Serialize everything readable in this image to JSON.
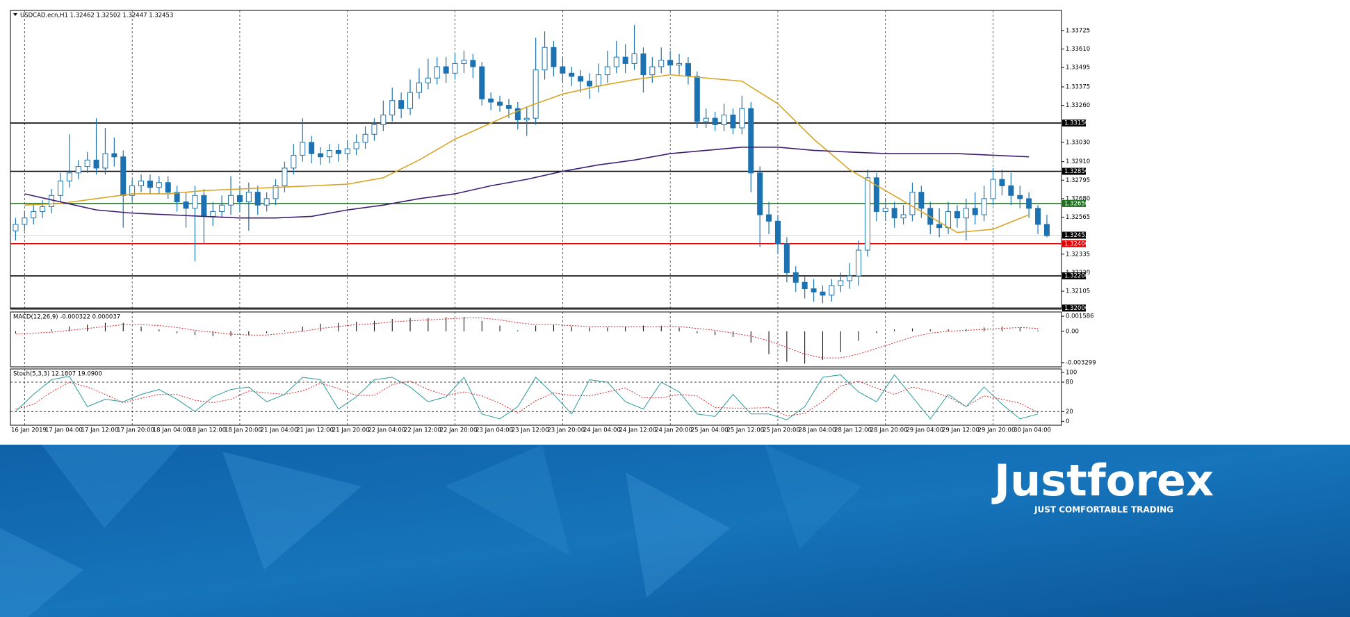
{
  "chart_data": [
    {
      "type": "candlestick",
      "title": "USDCAD.ecn,H1  1.32462 1.32502 1.32447 1.32453",
      "categories": [
        "16 Jan 2019",
        "17 Jan 04:00",
        "17 Jan 12:00",
        "17 Jan 20:00",
        "18 Jan 04:00",
        "18 Jan 12:00",
        "18 Jan 20:00",
        "21 Jan 04:00",
        "21 Jan 12:00",
        "21 Jan 20:00",
        "22 Jan 04:00",
        "22 Jan 12:00",
        "22 Jan 20:00",
        "23 Jan 04:00",
        "23 Jan 12:00",
        "23 Jan 20:00",
        "24 Jan 04:00",
        "24 Jan 12:00",
        "24 Jan 20:00",
        "25 Jan 04:00",
        "25 Jan 12:00",
        "25 Jan 20:00",
        "28 Jan 04:00",
        "28 Jan 12:00",
        "28 Jan 20:00",
        "29 Jan 04:00",
        "29 Jan 12:00",
        "29 Jan 20:00",
        "30 Jan 04:00"
      ],
      "open": [
        1.3248,
        1.3252,
        1.3256,
        1.326,
        1.3263,
        1.327,
        1.3279,
        1.3284,
        1.3288,
        1.3292,
        1.3287,
        1.3296,
        1.3294,
        1.327,
        1.3276,
        1.3279,
        1.3275,
        1.3278,
        1.3272,
        1.3266,
        1.3262,
        1.327,
        1.3257,
        1.326,
        1.3264,
        1.327,
        1.3266,
        1.3272,
        1.3264,
        1.3268,
        1.3276,
        1.3287,
        1.3295,
        1.3303,
        1.3296,
        1.3294,
        1.3298,
        1.3296,
        1.3299,
        1.3303,
        1.3308,
        1.3314,
        1.332,
        1.3329,
        1.3324,
        1.3334,
        1.334,
        1.3343,
        1.335,
        1.3346,
        1.3352,
        1.3354,
        1.335,
        1.333,
        1.3328,
        1.3326,
        1.3324,
        1.3317,
        1.3318,
        1.3348,
        1.3362,
        1.335,
        1.3346,
        1.3344,
        1.3341,
        1.3338,
        1.3345,
        1.335,
        1.3356,
        1.3352,
        1.3358,
        1.3345,
        1.335,
        1.3354,
        1.3351,
        1.3352,
        1.3344,
        1.3316,
        1.3318,
        1.3314,
        1.332,
        1.3312,
        1.3324,
        1.3284,
        1.3258,
        1.3254,
        1.324,
        1.3222,
        1.3216,
        1.3212,
        1.321,
        1.3208,
        1.3214,
        1.3217,
        1.322,
        1.3236,
        1.3281,
        1.326,
        1.3262,
        1.3256,
        1.3258,
        1.3272,
        1.3262,
        1.3252,
        1.325,
        1.326,
        1.3256,
        1.3262,
        1.3258,
        1.3268,
        1.328,
        1.3276,
        1.327,
        1.3268,
        1.3262,
        1.3252
      ],
      "high": [
        1.3256,
        1.326,
        1.3264,
        1.3267,
        1.3274,
        1.3284,
        1.3308,
        1.3292,
        1.3297,
        1.3318,
        1.3312,
        1.3306,
        1.3298,
        1.328,
        1.3283,
        1.3283,
        1.3282,
        1.3282,
        1.3276,
        1.3272,
        1.3276,
        1.3274,
        1.3266,
        1.327,
        1.3282,
        1.3276,
        1.3278,
        1.3276,
        1.3272,
        1.328,
        1.3291,
        1.3302,
        1.3318,
        1.3307,
        1.33,
        1.3302,
        1.3302,
        1.3304,
        1.3308,
        1.3313,
        1.3318,
        1.3329,
        1.3337,
        1.3334,
        1.3342,
        1.3349,
        1.3355,
        1.3356,
        1.3356,
        1.3358,
        1.336,
        1.3358,
        1.3353,
        1.3334,
        1.3332,
        1.333,
        1.3328,
        1.3325,
        1.3368,
        1.3372,
        1.3366,
        1.3356,
        1.335,
        1.3348,
        1.3346,
        1.3352,
        1.336,
        1.3366,
        1.3364,
        1.3376,
        1.3362,
        1.3356,
        1.3362,
        1.336,
        1.3358,
        1.3356,
        1.3347,
        1.3324,
        1.3322,
        1.3327,
        1.3324,
        1.3332,
        1.3328,
        1.3288,
        1.3266,
        1.3258,
        1.3244,
        1.3226,
        1.322,
        1.3218,
        1.3214,
        1.3218,
        1.3222,
        1.3228,
        1.3242,
        1.3286,
        1.3284,
        1.3268,
        1.3266,
        1.3264,
        1.3278,
        1.3276,
        1.3266,
        1.3262,
        1.3266,
        1.3264,
        1.3268,
        1.3272,
        1.3276,
        1.3287,
        1.3286,
        1.3284,
        1.3276,
        1.3272,
        1.3264,
        1.3258
      ],
      "low": [
        1.3242,
        1.3248,
        1.3252,
        1.3256,
        1.3259,
        1.3266,
        1.3275,
        1.328,
        1.3284,
        1.3283,
        1.3283,
        1.3288,
        1.325,
        1.3266,
        1.3272,
        1.3271,
        1.3271,
        1.3268,
        1.326,
        1.325,
        1.3229,
        1.324,
        1.3251,
        1.3256,
        1.3258,
        1.326,
        1.3248,
        1.3258,
        1.326,
        1.3264,
        1.3272,
        1.3283,
        1.3291,
        1.329,
        1.3289,
        1.329,
        1.3291,
        1.3292,
        1.3295,
        1.3299,
        1.3304,
        1.331,
        1.3316,
        1.3318,
        1.332,
        1.333,
        1.3336,
        1.3339,
        1.334,
        1.3342,
        1.3346,
        1.3343,
        1.3326,
        1.3323,
        1.3322,
        1.3318,
        1.3311,
        1.3307,
        1.3314,
        1.3342,
        1.3344,
        1.334,
        1.3338,
        1.3334,
        1.333,
        1.3334,
        1.334,
        1.3346,
        1.3346,
        1.3348,
        1.3334,
        1.334,
        1.3346,
        1.3346,
        1.3345,
        1.3339,
        1.3312,
        1.3312,
        1.331,
        1.331,
        1.3308,
        1.3308,
        1.3272,
        1.3238,
        1.3246,
        1.3234,
        1.3216,
        1.321,
        1.3206,
        1.3204,
        1.3203,
        1.3204,
        1.321,
        1.3212,
        1.3214,
        1.3232,
        1.3254,
        1.3254,
        1.325,
        1.3252,
        1.3254,
        1.3256,
        1.3246,
        1.3244,
        1.3246,
        1.325,
        1.3242,
        1.3252,
        1.3254,
        1.3264,
        1.327,
        1.3264,
        1.3262,
        1.3256,
        1.3246,
        1.3244
      ],
      "close": [
        1.3252,
        1.3256,
        1.326,
        1.3263,
        1.327,
        1.3279,
        1.3284,
        1.3288,
        1.3292,
        1.3287,
        1.3296,
        1.3294,
        1.327,
        1.3276,
        1.3279,
        1.3275,
        1.3278,
        1.3272,
        1.3266,
        1.3262,
        1.327,
        1.3257,
        1.326,
        1.3264,
        1.327,
        1.3266,
        1.3272,
        1.3264,
        1.3268,
        1.3276,
        1.3287,
        1.3295,
        1.3303,
        1.3296,
        1.3294,
        1.3298,
        1.3296,
        1.3299,
        1.3303,
        1.3308,
        1.3314,
        1.332,
        1.3329,
        1.3324,
        1.3334,
        1.334,
        1.3343,
        1.335,
        1.3346,
        1.3352,
        1.3354,
        1.335,
        1.333,
        1.3328,
        1.3326,
        1.3324,
        1.3317,
        1.3318,
        1.3348,
        1.3362,
        1.335,
        1.3346,
        1.3344,
        1.3341,
        1.3338,
        1.3345,
        1.335,
        1.3356,
        1.3352,
        1.3358,
        1.3345,
        1.335,
        1.3354,
        1.3351,
        1.3352,
        1.3344,
        1.3316,
        1.3318,
        1.3314,
        1.332,
        1.3312,
        1.3324,
        1.3284,
        1.3258,
        1.3254,
        1.324,
        1.3222,
        1.3216,
        1.3212,
        1.321,
        1.3208,
        1.3214,
        1.3217,
        1.322,
        1.3236,
        1.3281,
        1.326,
        1.3262,
        1.3256,
        1.3258,
        1.3272,
        1.3262,
        1.3252,
        1.325,
        1.326,
        1.3256,
        1.3262,
        1.3258,
        1.3268,
        1.328,
        1.3276,
        1.327,
        1.3268,
        1.3262,
        1.3252,
        1.3245
      ],
      "up_color": "#ffffff",
      "down_color": "#1c72b0",
      "moving_averages": [
        {
          "color": "#d9a528",
          "values": [
            1.3264,
            1.3265,
            1.3268,
            1.3271,
            1.3271,
            1.3273,
            1.3274,
            1.3275,
            1.3276,
            1.3277,
            1.3281,
            1.3292,
            1.3305,
            1.3315,
            1.3325,
            1.3333,
            1.3338,
            1.3342,
            1.3345,
            1.3343,
            1.3341,
            1.3327,
            1.3305,
            1.3286,
            1.3273,
            1.326,
            1.3247,
            1.3249,
            1.3258
          ]
        },
        {
          "color": "#3d1d72",
          "values": [
            1.3271,
            1.3266,
            1.3261,
            1.3259,
            1.3258,
            1.3257,
            1.3256,
            1.3256,
            1.3257,
            1.3261,
            1.3264,
            1.3268,
            1.3271,
            1.3276,
            1.328,
            1.3285,
            1.3289,
            1.3292,
            1.3296,
            1.3298,
            1.33,
            1.33,
            1.3298,
            1.3297,
            1.3296,
            1.3296,
            1.3296,
            1.3295,
            1.3294
          ]
        }
      ],
      "levels": [
        {
          "value": 1.3315,
          "label": "1.33150",
          "color": "#000000"
        },
        {
          "value": 1.3285,
          "label": "1.32850",
          "color": "#000000"
        },
        {
          "value": 1.3265,
          "label": "1.32650",
          "color": "#1f6e1f"
        },
        {
          "value": 1.324,
          "label": "1.32400",
          "color": "#e00000"
        },
        {
          "value": 1.322,
          "label": "1.32200",
          "color": "#000000"
        },
        {
          "value": 1.32,
          "label": "1.32000",
          "color": "#000000"
        }
      ],
      "current_price": 1.32453,
      "ylim": [
        1.31993,
        1.3385
      ],
      "yticks": [
        1.33725,
        {
          "value": 1.3361,
          "label": "1.33610"
        },
        1.33495,
        1.33375,
        {
          "value": 1.3326,
          "label": "1.33260"
        },
        {
          "value": 1.3303,
          "label": "1.33030"
        },
        {
          "value": 1.3291,
          "label": "1.32910"
        },
        1.32795,
        {
          "value": 1.3268,
          "label": "1.32680"
        },
        1.32565,
        1.32335,
        {
          "value": 1.3222,
          "label": "1.32220"
        },
        1.32105
      ]
    },
    {
      "type": "macd",
      "title": "MACD(12,26,9) -0.000322 0.000037",
      "histogram": [
        -0.0002,
        0.0,
        0.0002,
        0.0005,
        0.0007,
        0.0009,
        0.0009,
        0.0005,
        0.0002,
        -0.0002,
        -0.0004,
        -0.0005,
        -0.0005,
        -0.0004,
        -0.0002,
        0.0001,
        0.0005,
        0.0008,
        0.0009,
        0.001,
        0.0011,
        0.0013,
        0.0014,
        0.0014,
        0.0015,
        0.0015,
        0.0011,
        0.0006,
        0.0001,
        0.0006,
        0.0007,
        0.0005,
        0.0004,
        0.0004,
        0.0005,
        0.0006,
        0.0006,
        0.0004,
        -0.0002,
        -0.0004,
        -0.0006,
        -0.0012,
        -0.0024,
        -0.0032,
        -0.0034,
        -0.003,
        -0.0022,
        -0.001,
        -0.0002,
        0.0002,
        0.0003,
        0.0002,
        0.0002,
        0.0002,
        0.0004,
        0.0005,
        0.0004,
        0.0001
      ],
      "signal": [
        -0.0003,
        -0.0002,
        -0.0001,
        0.0001,
        0.0003,
        0.0005,
        0.0007,
        0.0007,
        0.0006,
        0.0004,
        0.0001,
        -0.0001,
        -0.0003,
        -0.0004,
        -0.0004,
        -0.0002,
        0.0,
        0.0003,
        0.0005,
        0.0007,
        0.0008,
        0.001,
        0.0011,
        0.0012,
        0.0013,
        0.0014,
        0.0014,
        0.0012,
        0.0009,
        0.0007,
        0.0007,
        0.0006,
        0.0005,
        0.0005,
        0.0005,
        0.0005,
        0.0005,
        0.0005,
        0.0003,
        0.0001,
        -0.0002,
        -0.0005,
        -0.001,
        -0.0017,
        -0.0024,
        -0.0028,
        -0.0028,
        -0.0024,
        -0.0018,
        -0.0012,
        -0.0006,
        -0.0002,
        0.0,
        0.0001,
        0.0002,
        0.0003,
        0.0004,
        0.0003
      ],
      "histogram_color": "#000000",
      "signal_color": "#d62728",
      "ylim": [
        -0.00374,
        0.00203
      ],
      "yticks": [
        0.001586,
        {
          "value": 0,
          "label": "0.00"
        },
        -0.003299
      ]
    },
    {
      "type": "stochastic",
      "title": "Stoch(5,3,3) 12.1807 19.0900",
      "main": [
        20,
        55,
        85,
        92,
        30,
        45,
        40,
        55,
        65,
        45,
        20,
        50,
        65,
        70,
        40,
        55,
        90,
        85,
        25,
        50,
        85,
        90,
        70,
        40,
        50,
        90,
        15,
        5,
        30,
        90,
        55,
        15,
        85,
        80,
        40,
        25,
        80,
        60,
        15,
        10,
        55,
        15,
        15,
        3,
        30,
        90,
        95,
        60,
        40,
        95,
        50,
        5,
        55,
        30,
        70,
        35,
        5,
        15
      ],
      "signal": [
        25,
        35,
        60,
        80,
        70,
        55,
        38,
        47,
        55,
        55,
        43,
        38,
        45,
        62,
        58,
        55,
        62,
        78,
        67,
        53,
        53,
        75,
        82,
        65,
        53,
        60,
        52,
        37,
        17,
        42,
        58,
        53,
        52,
        60,
        68,
        48,
        48,
        55,
        52,
        28,
        27,
        27,
        28,
        11,
        16,
        41,
        72,
        82,
        68,
        55,
        70,
        62,
        50,
        30,
        52,
        45,
        37,
        18
      ],
      "main_color": "#2a9a9a",
      "signal_color": "#d62728",
      "ylim": [
        -8,
        107
      ],
      "yticks": [
        100,
        80,
        20,
        0
      ],
      "levels": [
        80,
        20
      ]
    }
  ],
  "branding": {
    "logo": "Justforex",
    "tagline": "JUST COMFORTABLE TRADING"
  }
}
